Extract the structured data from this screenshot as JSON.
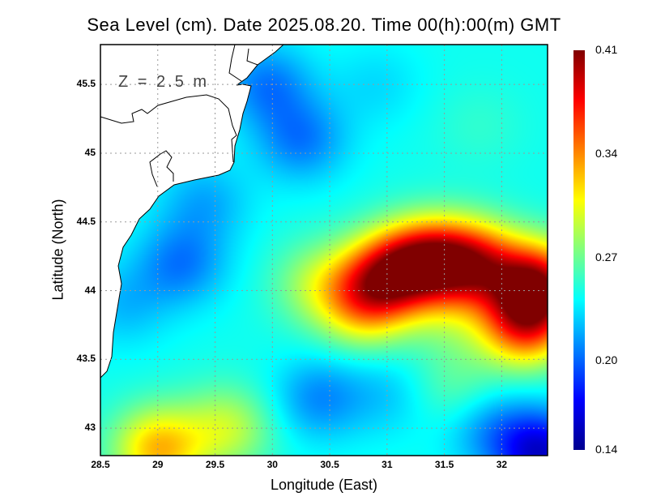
{
  "chart_data": {
    "type": "heatmap",
    "title": "Sea Level (cm). Date 2025.08.20. Time 00(h):00(m) GMT",
    "xlabel": "Longitude (East)",
    "ylabel": "Latitude (North)",
    "annotation": "Z = 2.5 m",
    "xlim": [
      28.5,
      32.4
    ],
    "ylim": [
      42.8,
      45.79
    ],
    "xticks": [
      "28.5",
      "29",
      "29.5",
      "30",
      "30.5",
      "31",
      "31.5",
      "32"
    ],
    "xtick_values": [
      28.5,
      29,
      29.5,
      30,
      30.5,
      31,
      31.5,
      32
    ],
    "yticks": [
      "45.5",
      "45",
      "44.5",
      "44",
      "43.5",
      "43"
    ],
    "ytick_values": [
      45.5,
      45,
      44.5,
      44,
      43.5,
      43
    ],
    "grid": true,
    "colorbar": {
      "min": 0.14,
      "max": 0.41,
      "ticks": [
        "0.41",
        "0.34",
        "0.27",
        "0.20",
        "0.14"
      ],
      "tick_values": [
        0.41,
        0.34,
        0.27,
        0.2,
        0.14
      ],
      "colormap": "jet"
    },
    "field_base": 0.245,
    "field_features": [
      {
        "lon": 31.0,
        "lat": 44.12,
        "value": 0.37
      },
      {
        "lon": 31.35,
        "lat": 44.22,
        "value": 0.385
      },
      {
        "lon": 31.75,
        "lat": 44.2,
        "value": 0.38
      },
      {
        "lon": 32.3,
        "lat": 44.05,
        "value": 0.41
      },
      {
        "lon": 32.2,
        "lat": 43.75,
        "value": 0.37
      },
      {
        "lon": 30.8,
        "lat": 43.9,
        "value": 0.33
      },
      {
        "lon": 31.55,
        "lat": 43.8,
        "value": 0.27
      },
      {
        "lon": 30.4,
        "lat": 44.05,
        "value": 0.29
      },
      {
        "lon": 29.0,
        "lat": 42.85,
        "value": 0.34
      },
      {
        "lon": 29.6,
        "lat": 43.0,
        "value": 0.3
      },
      {
        "lon": 32.35,
        "lat": 42.82,
        "value": 0.15
      },
      {
        "lon": 31.9,
        "lat": 43.0,
        "value": 0.21
      },
      {
        "lon": 29.2,
        "lat": 44.2,
        "value": 0.2
      },
      {
        "lon": 30.4,
        "lat": 43.22,
        "value": 0.205
      },
      {
        "lon": 30.25,
        "lat": 45.1,
        "value": 0.2
      },
      {
        "lon": 29.95,
        "lat": 45.5,
        "value": 0.2
      },
      {
        "lon": 29.4,
        "lat": 44.65,
        "value": 0.215
      },
      {
        "lon": 28.7,
        "lat": 43.9,
        "value": 0.22
      },
      {
        "lon": 30.9,
        "lat": 45.5,
        "value": 0.23
      },
      {
        "lon": 31.8,
        "lat": 45.2,
        "value": 0.255
      },
      {
        "lon": 31.0,
        "lat": 43.25,
        "value": 0.225
      },
      {
        "lon": 31.6,
        "lat": 43.3,
        "value": 0.27
      }
    ]
  }
}
